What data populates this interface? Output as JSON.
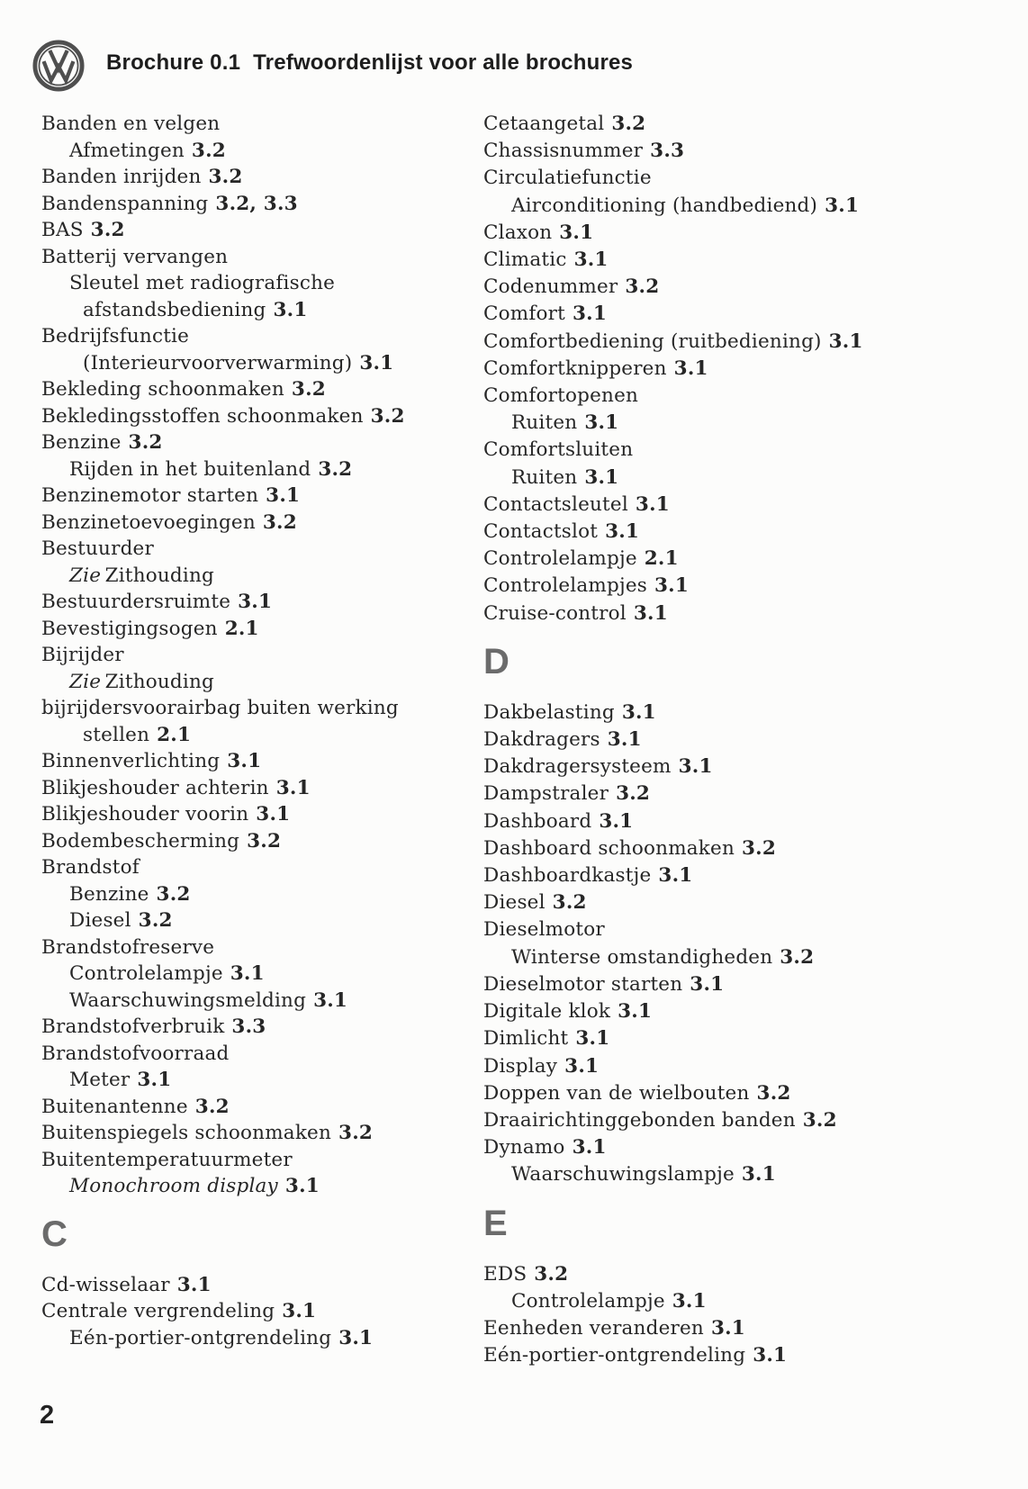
{
  "header": {
    "brochure": "Brochure 0.1",
    "title": "Trefwoordenlijst voor alle brochures"
  },
  "page_number": "2",
  "colors": {
    "ink": "#262626",
    "section_letter": "#6b6b6b",
    "logo": "#4f4f4f"
  },
  "columns": [
    {
      "items": [
        {
          "text": "Banden en velgen"
        },
        {
          "text": "Afmetingen",
          "ref": "3.2",
          "indent": 1
        },
        {
          "text": "Banden inrijden",
          "ref": "3.2"
        },
        {
          "text": "Bandenspanning",
          "ref": "3.2, 3.3"
        },
        {
          "text": "BAS",
          "ref": "3.2"
        },
        {
          "text": "Batterij vervangen"
        },
        {
          "text": "Sleutel met radiografische",
          "indent": 1
        },
        {
          "text": "afstandsbediening",
          "ref": "3.1",
          "indent": 2
        },
        {
          "text": "Bedrijfsfunctie"
        },
        {
          "text": "(Interieurvoorverwarming)",
          "ref": "3.1",
          "indent": 2
        },
        {
          "text": "Bekleding schoonmaken",
          "ref": "3.2"
        },
        {
          "text": "Bekledingsstoffen schoonmaken",
          "ref": "3.2"
        },
        {
          "text": "Benzine",
          "ref": "3.2"
        },
        {
          "text": "Rijden in het buitenland",
          "ref": "3.2",
          "indent": 1
        },
        {
          "text": "Benzinemotor starten",
          "ref": "3.1"
        },
        {
          "text": "Benzinetoevoegingen",
          "ref": "3.2"
        },
        {
          "text": "Bestuurder"
        },
        {
          "em": "Zie",
          "text": "Zithouding",
          "indent": 1
        },
        {
          "text": "Bestuurdersruimte",
          "ref": "3.1"
        },
        {
          "text": "Bevestigingsogen",
          "ref": "2.1"
        },
        {
          "text": "Bijrijder"
        },
        {
          "em": "Zie",
          "text": "Zithouding",
          "indent": 1
        },
        {
          "text": "bijrijdersvoorairbag buiten werking"
        },
        {
          "text": "stellen",
          "ref": "2.1",
          "indent": 2
        },
        {
          "text": "Binnenverlichting",
          "ref": "3.1"
        },
        {
          "text": "Blikjeshouder achterin",
          "ref": "3.1"
        },
        {
          "text": "Blikjeshouder voorin",
          "ref": "3.1"
        },
        {
          "text": "Bodembescherming",
          "ref": "3.2"
        },
        {
          "text": "Brandstof"
        },
        {
          "text": "Benzine",
          "ref": "3.2",
          "indent": 1
        },
        {
          "text": "Diesel",
          "ref": "3.2",
          "indent": 1
        },
        {
          "text": "Brandstofreserve"
        },
        {
          "text": "Controlelampje",
          "ref": "3.1",
          "indent": 1
        },
        {
          "text": "Waarschuwingsmelding",
          "ref": "3.1",
          "indent": 1
        },
        {
          "text": "Brandstofverbruik",
          "ref": "3.3"
        },
        {
          "text": "Brandstofvoorraad"
        },
        {
          "text": "Meter",
          "ref": "3.1",
          "indent": 1
        },
        {
          "text": "Buitenantenne",
          "ref": "3.2"
        },
        {
          "text": "Buitenspiegels schoonmaken",
          "ref": "3.2"
        },
        {
          "text": "Buitentemperatuurmeter"
        },
        {
          "text": "Monochroom display",
          "ref": "3.1",
          "indent": 1,
          "it": true
        },
        {
          "letter": "C"
        },
        {
          "text": "Cd-wisselaar",
          "ref": "3.1"
        },
        {
          "text": "Centrale vergrendeling",
          "ref": "3.1"
        },
        {
          "text": "Eén-portier-ontgrendeling",
          "ref": "3.1",
          "indent": 1
        }
      ]
    },
    {
      "items": [
        {
          "text": "Cetaangetal",
          "ref": "3.2"
        },
        {
          "text": "Chassisnummer",
          "ref": "3.3"
        },
        {
          "text": "Circulatiefunctie"
        },
        {
          "text": "Airconditioning (handbediend)",
          "ref": "3.1",
          "indent": 1
        },
        {
          "text": "Claxon",
          "ref": "3.1"
        },
        {
          "text": "Climatic",
          "ref": "3.1"
        },
        {
          "text": "Codenummer",
          "ref": "3.2"
        },
        {
          "text": "Comfort",
          "ref": "3.1"
        },
        {
          "text": "Comfortbediening (ruitbediening)",
          "ref": "3.1"
        },
        {
          "text": "Comfortknipperen",
          "ref": "3.1"
        },
        {
          "text": "Comfortopenen"
        },
        {
          "text": "Ruiten",
          "ref": "3.1",
          "indent": 1
        },
        {
          "text": "Comfortsluiten"
        },
        {
          "text": "Ruiten",
          "ref": "3.1",
          "indent": 1
        },
        {
          "text": "Contactsleutel",
          "ref": "3.1"
        },
        {
          "text": "Contactslot",
          "ref": "3.1"
        },
        {
          "text": "Controlelampje",
          "ref": "2.1"
        },
        {
          "text": "Controlelampjes",
          "ref": "3.1"
        },
        {
          "text": "Cruise-control",
          "ref": "3.1"
        },
        {
          "letter": "D"
        },
        {
          "text": "Dakbelasting",
          "ref": "3.1"
        },
        {
          "text": "Dakdragers",
          "ref": "3.1"
        },
        {
          "text": "Dakdragersysteem",
          "ref": "3.1"
        },
        {
          "text": "Dampstraler",
          "ref": "3.2"
        },
        {
          "text": "Dashboard",
          "ref": "3.1"
        },
        {
          "text": "Dashboard schoonmaken",
          "ref": "3.2"
        },
        {
          "text": "Dashboardkastje",
          "ref": "3.1"
        },
        {
          "text": "Diesel",
          "ref": "3.2"
        },
        {
          "text": "Dieselmotor"
        },
        {
          "text": "Winterse omstandigheden",
          "ref": "3.2",
          "indent": 1
        },
        {
          "text": "Dieselmotor starten",
          "ref": "3.1"
        },
        {
          "text": "Digitale klok",
          "ref": "3.1"
        },
        {
          "text": "Dimlicht",
          "ref": "3.1"
        },
        {
          "text": "Display",
          "ref": "3.1"
        },
        {
          "text": "Doppen van de wielbouten",
          "ref": "3.2"
        },
        {
          "text": "Draairichtinggebonden banden",
          "ref": "3.2"
        },
        {
          "text": "Dynamo",
          "ref": "3.1"
        },
        {
          "text": "Waarschuwingslampje",
          "ref": "3.1",
          "indent": 1
        },
        {
          "letter": "E"
        },
        {
          "text": "EDS",
          "ref": "3.2"
        },
        {
          "text": "Controlelampje",
          "ref": "3.1",
          "indent": 1
        },
        {
          "text": "Eenheden veranderen",
          "ref": "3.1"
        },
        {
          "text": "Eén-portier-ontgrendeling",
          "ref": "3.1"
        }
      ]
    }
  ]
}
